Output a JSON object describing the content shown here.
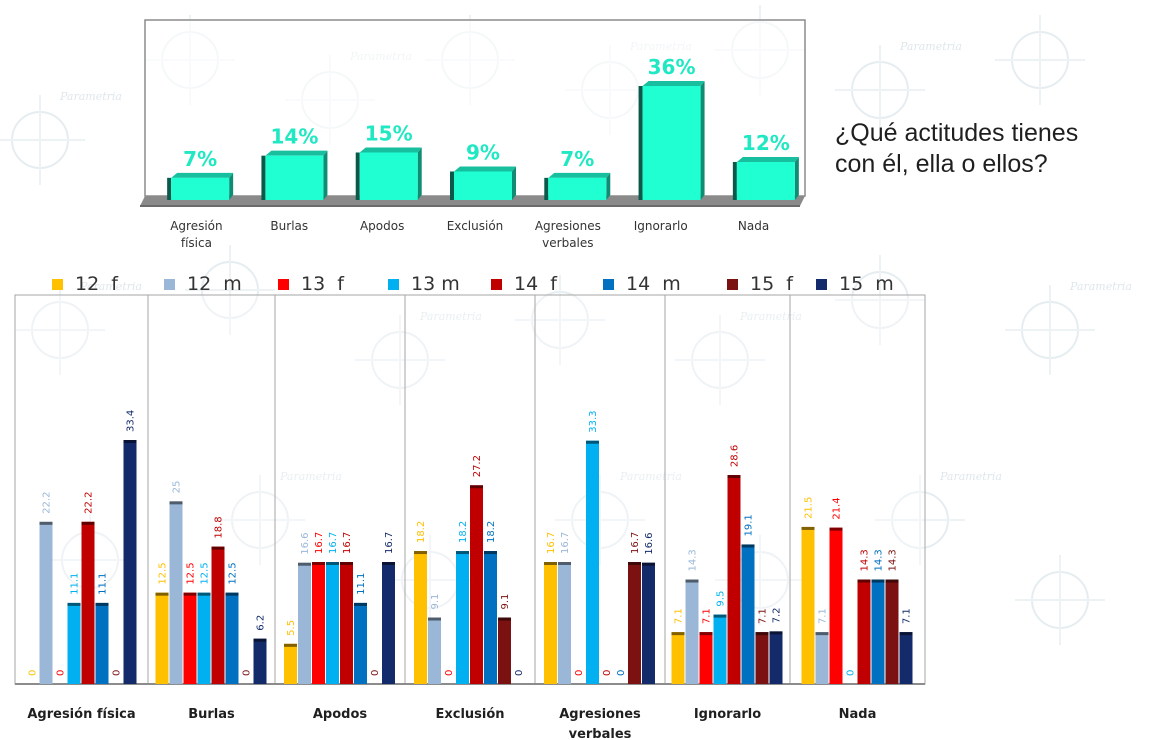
{
  "question": {
    "line1": "¿Qué actitudes tienes",
    "line2": "con él, ella o ellos?"
  },
  "watermark_text": "Parametria",
  "chart_data": [
    {
      "type": "bar",
      "categories": [
        "Agresión física",
        "Burlas",
        "Apodos",
        "Exclusión",
        "Agresiones verbales",
        "Ignorarlo",
        "Nada"
      ],
      "category_lines": [
        [
          "Agresión",
          "física"
        ],
        [
          "Burlas"
        ],
        [
          "Apodos"
        ],
        [
          "Exclusión"
        ],
        [
          "Agresiones",
          "verbales"
        ],
        [
          "Ignorarlo"
        ],
        [
          "Nada"
        ]
      ],
      "values": [
        7,
        14,
        15,
        9,
        7,
        36,
        12
      ],
      "data_labels": [
        "7%",
        "14%",
        "15%",
        "9%",
        "7%",
        "36%",
        "12%"
      ],
      "ylim": [
        0,
        40
      ],
      "color": "#1fffd2",
      "label_color": "#1fe8c3",
      "style": "3d-bar"
    },
    {
      "type": "bar",
      "categories": [
        "Agresión física",
        "Burlas",
        "Apodos",
        "Exclusión",
        "Agresiones verbales",
        "Ignorarlo",
        "Nada"
      ],
      "category_lines": [
        [
          "Agresión física"
        ],
        [
          "Burlas"
        ],
        [
          "Apodos"
        ],
        [
          "Exclusión"
        ],
        [
          "Agresiones",
          "verbales"
        ],
        [
          "Ignorarlo"
        ],
        [
          "Nada"
        ]
      ],
      "legend_position": "top",
      "ylim": [
        0,
        40
      ],
      "series": [
        {
          "name": "12  f",
          "color": "#ffc000",
          "values": [
            0,
            12.5,
            5.5,
            18.2,
            16.7,
            7.1,
            21.5
          ],
          "labels": [
            "0",
            "12.5",
            "5.5",
            "18.2",
            "16.7",
            "7.1",
            "21.5"
          ]
        },
        {
          "name": "12  m",
          "color": "#9bb7d8",
          "values": [
            22.2,
            25,
            16.6,
            9.1,
            16.7,
            14.3,
            7.1
          ],
          "labels": [
            "22.2",
            "25",
            "16.6",
            "9.1",
            "16.7",
            "14.3",
            "7.1"
          ]
        },
        {
          "name": "13  f",
          "color": "#ff0000",
          "values": [
            0,
            12.5,
            16.7,
            0,
            0,
            7.1,
            21.4
          ],
          "labels": [
            "0",
            "12.5",
            "16.7",
            "0",
            "0",
            "7.1",
            "21.4"
          ]
        },
        {
          "name": "13 m",
          "color": "#00b0f0",
          "values": [
            11.1,
            12.5,
            16.7,
            18.2,
            33.3,
            9.5,
            0
          ],
          "labels": [
            "11.1",
            "12.5",
            "16.7",
            "18.2",
            "33.3",
            "9.5",
            "0"
          ]
        },
        {
          "name": "14  f",
          "color": "#c00000",
          "values": [
            22.2,
            18.8,
            16.7,
            27.2,
            0,
            28.6,
            14.3
          ],
          "labels": [
            "22.2",
            "18.8",
            "16.7",
            "27.2",
            "0",
            "28.6",
            "14.3"
          ]
        },
        {
          "name": "14  m",
          "color": "#0070c0",
          "values": [
            11.1,
            12.5,
            11.1,
            18.2,
            0,
            19.1,
            14.3
          ],
          "labels": [
            "11.1",
            "12.5",
            "11.1",
            "18.2",
            "0",
            "19.1",
            "14.3"
          ]
        },
        {
          "name": "15  f",
          "color": "#7b1111",
          "values": [
            0,
            0,
            0,
            9.1,
            16.7,
            7.1,
            14.3
          ],
          "labels": [
            "0",
            "0",
            "0",
            "9.1",
            "16.7",
            "7.1",
            "14.3"
          ]
        },
        {
          "name": "15  m",
          "color": "#132a6b",
          "values": [
            33.4,
            6.2,
            16.7,
            0,
            16.6,
            7.2,
            7.1
          ],
          "labels": [
            "33.4",
            "6.2",
            "16.7",
            "0",
            "16.6",
            "7.2",
            "7.1"
          ]
        }
      ]
    }
  ]
}
